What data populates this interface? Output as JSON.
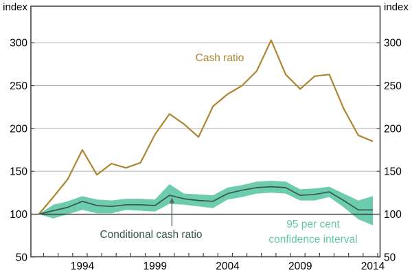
{
  "figure": {
    "unit_left": "index",
    "unit_right": "index"
  },
  "annotations": {
    "cash_label": "Cash ratio",
    "conditional_label": "Conditional cash ratio",
    "ci_label_line1": "95 per cent",
    "ci_label_line2": "confidence interval"
  },
  "colors": {
    "cash_line": "#ad8531",
    "cash_label": "#ae8433",
    "conditional_line": "#33584c",
    "conditional_label": "#2f5548",
    "band_fill": "#6dcbae",
    "ci_label": "#5fc7a8",
    "gridline": "#b1b1b1",
    "baseline": "#1a1a1a",
    "frame": "#444444",
    "axis_text": "#000000",
    "arrow": "#55685f"
  },
  "chart_data": {
    "type": "line",
    "title": "",
    "ylabel": "index",
    "ylabel_right": "index",
    "grid": "horizontal gridlines at 150-300, solid black reference line at 100",
    "legend_position": "inline text annotations",
    "ylim": [
      50,
      343
    ],
    "y_ticks": [
      50,
      100,
      150,
      200,
      250,
      300
    ],
    "x_tick_labels": [
      1994,
      1999,
      2004,
      2009,
      2014
    ],
    "baseline_value": 100,
    "x": [
      1991,
      1992,
      1993,
      1994,
      1995,
      1996,
      1997,
      1998,
      1999,
      2000,
      2001,
      2002,
      2003,
      2004,
      2005,
      2006,
      2007,
      2008,
      2009,
      2010,
      2011,
      2012,
      2013,
      2014
    ],
    "series": [
      {
        "name": "Cash ratio",
        "values": [
          100,
          120,
          141,
          175,
          146,
          159,
          154,
          160,
          193,
          217,
          205,
          190,
          226,
          240,
          250,
          267,
          303,
          263,
          246,
          261,
          263,
          223,
          192,
          185
        ]
      },
      {
        "name": "Conditional cash ratio",
        "values": [
          100,
          104,
          108,
          115,
          110,
          109,
          111,
          111,
          110,
          122,
          118,
          116,
          115,
          124,
          128,
          131,
          132,
          131,
          122,
          123,
          126,
          116,
          105,
          105
        ]
      },
      {
        "name": "95 per cent confidence interval (upper)",
        "values": [
          100,
          111,
          115,
          121,
          117,
          116,
          118,
          118,
          117,
          135,
          124,
          123,
          122,
          131,
          134,
          138,
          139,
          138,
          129,
          130,
          132,
          124,
          116,
          121
        ]
      },
      {
        "name": "95 per cent confidence interval (lower)",
        "values": [
          100,
          95,
          100,
          105,
          101,
          101,
          105,
          104,
          103,
          112,
          111,
          109,
          107,
          117,
          120,
          124,
          125,
          124,
          116,
          116,
          120,
          108,
          94,
          87
        ]
      }
    ]
  }
}
